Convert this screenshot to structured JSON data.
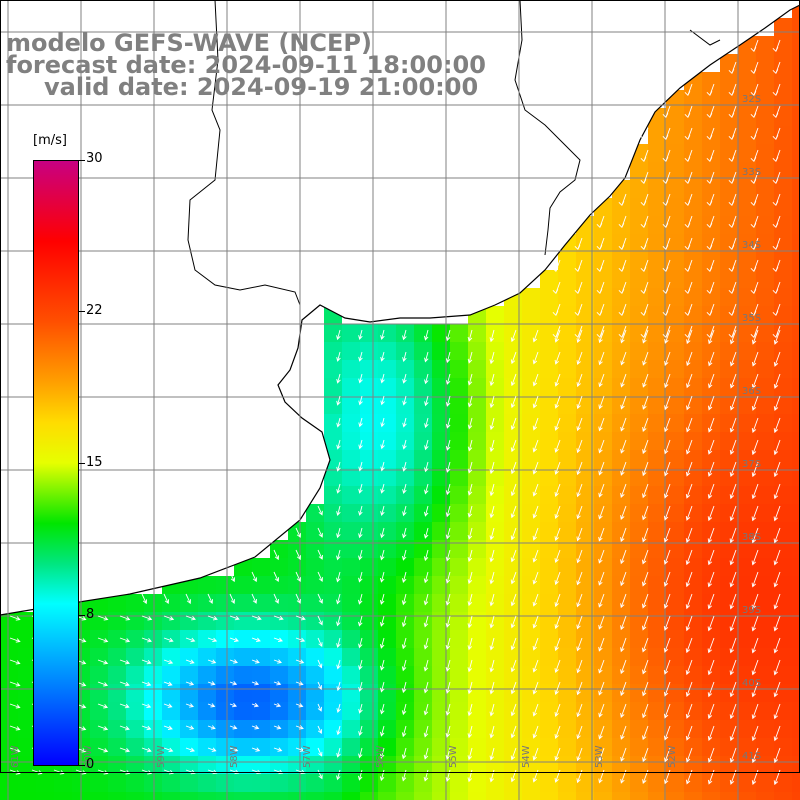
{
  "header": {
    "model": "modelo GEFS-WAVE (NCEP)",
    "forecast": "forecast date: 2024-09-11 18:00:00",
    "valid": "valid date: 2024-09-19 21:00:00"
  },
  "colorbar": {
    "unit": "[m/s]",
    "ticks": [
      "30",
      "22",
      "15",
      "8",
      "0"
    ],
    "tick_values": [
      30,
      22,
      15,
      8,
      0
    ],
    "min": 0,
    "max": 30
  },
  "map": {
    "lat_labels": [
      "32S",
      "33S",
      "34S",
      "35S",
      "36S",
      "37S",
      "38S",
      "39S",
      "40S",
      "41S"
    ],
    "lon_labels": [
      "61W",
      "60W",
      "59W",
      "58W",
      "57W",
      "56W",
      "55W",
      "54W",
      "53W",
      "52W"
    ],
    "land_color": "#ffffff",
    "coast_color": "#000000",
    "grid_color": "#808080",
    "arrow_color": "#ffffff",
    "wind_direction": "from north to south"
  }
}
